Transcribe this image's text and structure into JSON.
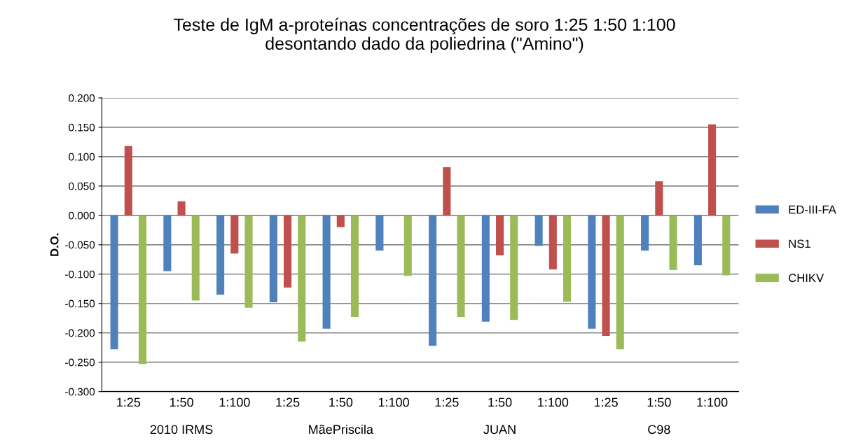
{
  "chart_data": {
    "type": "bar",
    "title": "Teste de IgM a-proteínas concentrações de soro 1:25 1:50 1:100\ndesontando dado da poliedrina (\"Amino\")",
    "ylabel": "D.O.",
    "categories": [
      "1:25",
      "1:50",
      "1:100",
      "1:25",
      "1:50",
      "1:100",
      "1:25",
      "1:50",
      "1:100",
      "1:25",
      "1:50",
      "1:100"
    ],
    "annotations": [
      "2010 IRMS",
      "MãePriscila",
      "JUAN",
      "C98"
    ],
    "series": [
      {
        "name": "ED-III-FA",
        "color": "#4f81bd",
        "values": [
          -0.228,
          -0.095,
          -0.135,
          -0.148,
          -0.193,
          -0.06,
          -0.222,
          -0.181,
          -0.052,
          -0.193,
          -0.06,
          -0.085
        ]
      },
      {
        "name": "NS1",
        "color": "#c0504d",
        "values": [
          0.118,
          0.024,
          -0.065,
          -0.123,
          -0.02,
          0,
          0.082,
          -0.068,
          -0.092,
          -0.205,
          0.058,
          0.155
        ]
      },
      {
        "name": "CHIKV",
        "color": "#9bbb59",
        "values": [
          -0.253,
          -0.145,
          -0.157,
          -0.215,
          -0.173,
          -0.103,
          -0.173,
          -0.178,
          -0.147,
          -0.228,
          -0.093,
          -0.102
        ]
      }
    ],
    "ylim": [
      -0.3,
      0.2
    ],
    "yticks": [
      {
        "value": -0.3,
        "label": "-0.300"
      },
      {
        "value": -0.25,
        "label": "-0.250"
      },
      {
        "value": -0.2,
        "label": "-0.200"
      },
      {
        "value": -0.15,
        "label": "-0.150"
      },
      {
        "value": -0.1,
        "label": "-0.100"
      },
      {
        "value": -0.05,
        "label": "-0.050"
      },
      {
        "value": 0,
        "label": "0.000"
      },
      {
        "value": 0.05,
        "label": "0.050"
      },
      {
        "value": 0.1,
        "label": "0.100"
      },
      {
        "value": 0.15,
        "label": "0.150"
      },
      {
        "value": 0.2,
        "label": "0.200"
      }
    ],
    "grid": "y",
    "legend": "right"
  }
}
